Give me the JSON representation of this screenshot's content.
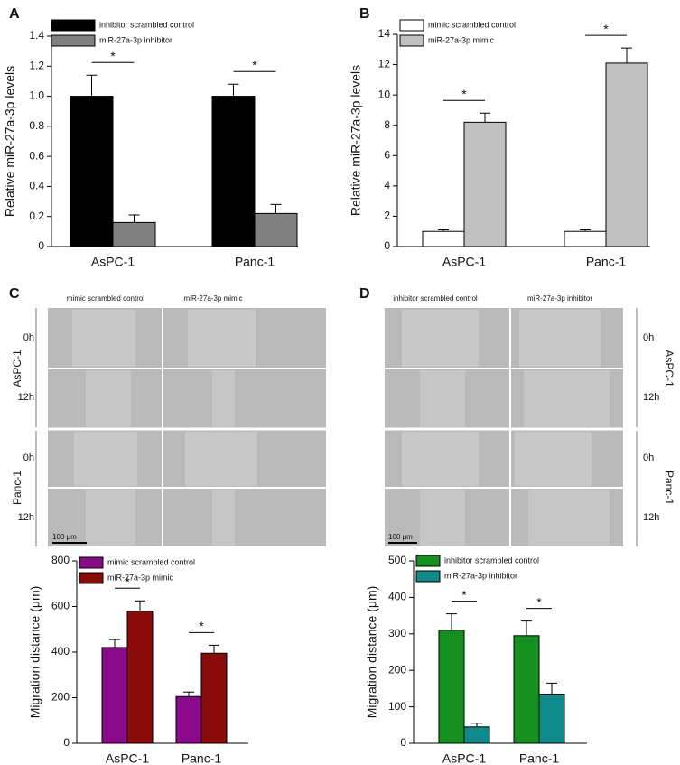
{
  "panels": [
    "A",
    "B",
    "C",
    "D"
  ],
  "micrographs": [
    {
      "columns": [
        "mimic scrambled control",
        "miR-27a-3p mimic"
      ],
      "rows": [
        "0h",
        "12h",
        "0h",
        "12h"
      ],
      "groups": [
        "AsPC-1",
        "Panc-1"
      ],
      "scale_bar": "100 μm"
    },
    {
      "columns": [
        "inhibitor scrambled control",
        "miR-27a-3p inhibitor"
      ],
      "rows": [
        "0h",
        "12h",
        "0h",
        "12h"
      ],
      "groups": [
        "AsPC-1",
        "Panc-1"
      ],
      "scale_bar": "100 μm"
    }
  ],
  "chart_data": [
    {
      "type": "bar",
      "ylabel": "Relative miR-27a-3p levels",
      "categories": [
        "AsPC-1",
        "Panc-1"
      ],
      "series": [
        {
          "name": "inhibitor scrambled control",
          "color": "#000000",
          "values": [
            1.0,
            1.0
          ],
          "errors": [
            0.14,
            0.08
          ]
        },
        {
          "name": "miR-27a-3p inhibitor",
          "color": "#808080",
          "values": [
            0.16,
            0.22
          ],
          "errors": [
            0.05,
            0.06
          ]
        }
      ],
      "ylim": [
        0,
        1.4
      ],
      "yticks": [
        0,
        0.2,
        0.4,
        0.6,
        0.8,
        {
          "value": 1,
          "label": "1.0"
        },
        1.2,
        1.4
      ],
      "annotations": [
        "*",
        "*"
      ]
    },
    {
      "type": "bar",
      "ylabel": "Relative miR-27a-3p levels",
      "categories": [
        "AsPC-1",
        "Panc-1"
      ],
      "series": [
        {
          "name": "mimic scrambled control",
          "color": "#ffffff",
          "values": [
            1.0,
            1.0
          ],
          "errors": [
            0.1,
            0.1
          ]
        },
        {
          "name": "miR-27a-3p mimic",
          "color": "#c0c0c0",
          "values": [
            8.2,
            12.1
          ],
          "errors": [
            0.6,
            1.0
          ]
        }
      ],
      "ylim": [
        0,
        14
      ],
      "yticks": [
        0,
        2,
        4,
        6,
        8,
        10,
        12,
        14
      ],
      "annotations": [
        "*",
        "*"
      ]
    },
    {
      "type": "bar",
      "ylabel": "Migration distance (μm)",
      "categories": [
        "AsPC-1",
        "Panc-1"
      ],
      "series": [
        {
          "name": "mimic scrambled control",
          "color": "#8b0a8b",
          "values": [
            420,
            205
          ],
          "errors": [
            35,
            20
          ]
        },
        {
          "name": "miR-27a-3p mimic",
          "color": "#8b0a0a",
          "values": [
            580,
            395
          ],
          "errors": [
            45,
            35
          ]
        }
      ],
      "ylim": [
        0,
        800
      ],
      "yticks": [
        0,
        200,
        400,
        600,
        800
      ],
      "annotations": [
        "*",
        "*"
      ]
    },
    {
      "type": "bar",
      "ylabel": "Migration distance (μm)",
      "categories": [
        "AsPC-1",
        "Panc-1"
      ],
      "series": [
        {
          "name": "inhibitor scrambled control",
          "color": "#14901e",
          "values": [
            310,
            295
          ],
          "errors": [
            45,
            40
          ]
        },
        {
          "name": "miR-27a-3p inhibitor",
          "color": "#0f8a8a",
          "values": [
            45,
            135
          ],
          "errors": [
            10,
            30
          ]
        }
      ],
      "ylim": [
        0,
        500
      ],
      "yticks": [
        0,
        100,
        200,
        300,
        400,
        500
      ],
      "annotations": [
        "*",
        "*"
      ]
    }
  ]
}
